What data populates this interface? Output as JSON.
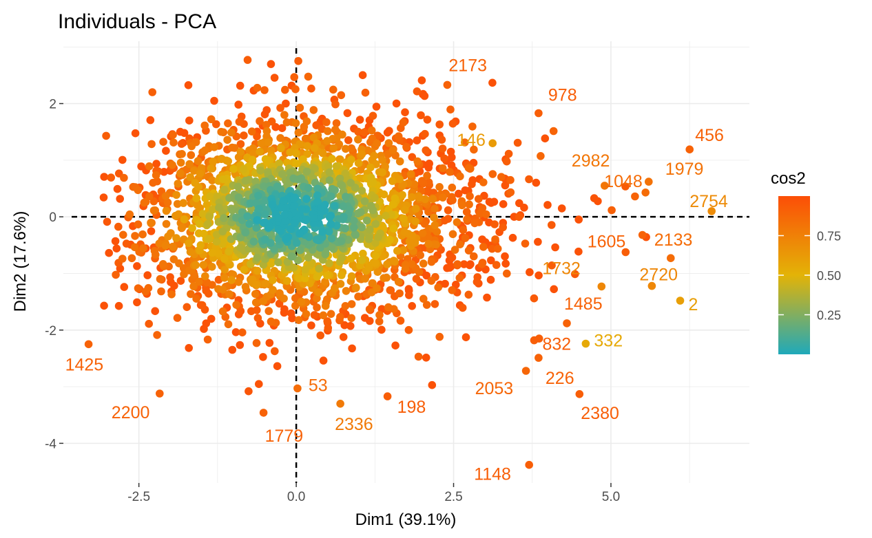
{
  "chart_data": {
    "type": "scatter",
    "title": "Individuals - PCA",
    "xlabel": "Dim1 (39.1%)",
    "ylabel": "Dim2 (17.6%)",
    "xlim": [
      -3.7,
      7.2
    ],
    "ylim": [
      -4.7,
      3.1
    ],
    "xticks": [
      -2.5,
      0.0,
      2.5,
      5.0
    ],
    "xtick_labels": [
      "-2.5",
      "0.0",
      "2.5",
      "5.0"
    ],
    "yticks": [
      -4,
      -2,
      0,
      2
    ],
    "ytick_labels": [
      "-4",
      "-2",
      "0",
      "2"
    ],
    "reference_lines": {
      "x": 0,
      "y": 0,
      "style": "dashed"
    },
    "grid": true,
    "color_variable": "cos2",
    "color_gradient": {
      "low": "#1fa9ba",
      "mid": "#e3b307",
      "high": "#fc4e07"
    },
    "colorbar": {
      "title": "cos2",
      "ticks": [
        0.25,
        0.5,
        0.75
      ],
      "tick_labels": [
        "0.25",
        "0.50",
        "0.75"
      ],
      "range": [
        0.0,
        1.0
      ]
    },
    "labeled_points": [
      {
        "label": "2173",
        "x": 2.4,
        "y": 2.33,
        "cos2": 0.9
      },
      {
        "label": "978",
        "x": 3.85,
        "y": 1.83,
        "cos2": 0.92
      },
      {
        "label": "146",
        "x": 3.12,
        "y": 1.3,
        "cos2": 0.62
      },
      {
        "label": "456",
        "x": 6.25,
        "y": 1.19,
        "cos2": 0.9
      },
      {
        "label": "2982",
        "x": 4.9,
        "y": 0.55,
        "cos2": 0.8
      },
      {
        "label": "1979",
        "x": 5.6,
        "y": 0.62,
        "cos2": 0.82
      },
      {
        "label": "2754",
        "x": 6.6,
        "y": 0.1,
        "cos2": 0.7
      },
      {
        "label": "1048",
        "x": 5.55,
        "y": 0.43,
        "cos2": 0.85
      },
      {
        "label": "1605",
        "x": 5.5,
        "y": -0.32,
        "cos2": 0.9
      },
      {
        "label": "2133",
        "x": 5.95,
        "y": -0.73,
        "cos2": 0.85
      },
      {
        "label": "1732",
        "x": 4.85,
        "y": -1.23,
        "cos2": 0.72
      },
      {
        "label": "2720",
        "x": 5.65,
        "y": -1.22,
        "cos2": 0.72
      },
      {
        "label": "1485",
        "x": 4.3,
        "y": -1.88,
        "cos2": 0.9
      },
      {
        "label": "2",
        "x": 6.1,
        "y": -1.48,
        "cos2": 0.6
      },
      {
        "label": "332",
        "x": 4.6,
        "y": -2.24,
        "cos2": 0.55
      },
      {
        "label": "832",
        "x": 3.78,
        "y": -2.18,
        "cos2": 0.92
      },
      {
        "label": "226",
        "x": 3.85,
        "y": -2.49,
        "cos2": 0.9
      },
      {
        "label": "2053",
        "x": 3.65,
        "y": -2.72,
        "cos2": 0.88
      },
      {
        "label": "2380",
        "x": 4.5,
        "y": -3.13,
        "cos2": 0.92
      },
      {
        "label": "1148",
        "x": 3.7,
        "y": -4.38,
        "cos2": 0.92
      },
      {
        "label": "1425",
        "x": -3.3,
        "y": -2.25,
        "cos2": 0.9
      },
      {
        "label": "2200",
        "x": -2.17,
        "y": -3.12,
        "cos2": 0.9
      },
      {
        "label": "1779",
        "x": -0.52,
        "y": -3.46,
        "cos2": 0.9
      },
      {
        "label": "53",
        "x": 0.02,
        "y": -3.03,
        "cos2": 0.85
      },
      {
        "label": "2336",
        "x": 0.7,
        "y": -3.3,
        "cos2": 0.78
      },
      {
        "label": "198",
        "x": 1.45,
        "y": -3.17,
        "cos2": 0.92
      }
    ],
    "cloud": {
      "count": 2300,
      "seed": 20240611,
      "main_center": [
        -0.2,
        0.0
      ],
      "main_sd": [
        1.15,
        0.95
      ],
      "right_center": [
        1.3,
        0.0
      ],
      "right_sd": [
        1.35,
        0.85
      ],
      "right_share": 0.32
    }
  }
}
